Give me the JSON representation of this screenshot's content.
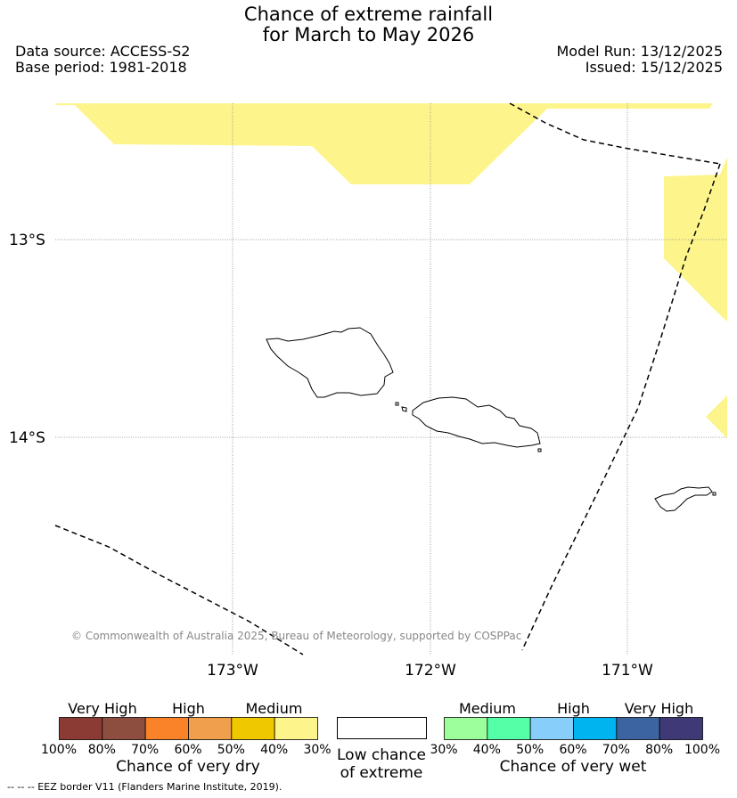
{
  "header": {
    "title_line1": "Chance of extreme rainfall",
    "title_line2": "for March to May 2026",
    "data_source": "Data source: ACCESS-S2",
    "base_period": "Base period: 1981-2018",
    "model_run": "Model Run: 13/12/2025",
    "issued": "Issued: 15/12/2025"
  },
  "map": {
    "lon_labels": [
      "173°W",
      "172°W",
      "171°W"
    ],
    "lat_labels": [
      "13°S",
      "14°S"
    ],
    "copyright": "© Commonwealth of Australia 2025, Bureau of Meteorology, supported by COSPPac",
    "colors": {
      "medium_dry": "#fdf58c",
      "land_outline": "#000000",
      "grid": "#888888"
    }
  },
  "legend": {
    "dry": {
      "groups": [
        "Very High",
        "High",
        "Medium"
      ],
      "ticks": [
        "100%",
        "80%",
        "70%",
        "60%",
        "50%",
        "40%",
        "30%"
      ],
      "caption": "Chance of very dry",
      "colors": [
        "#8b3a34",
        "#8e4e3f",
        "#fa8228",
        "#f0a04c",
        "#f0c800",
        "#fdf58c"
      ]
    },
    "low": {
      "caption_line1": "Low chance",
      "caption_line2": "of extreme"
    },
    "wet": {
      "groups": [
        "Medium",
        "High",
        "Very High"
      ],
      "ticks": [
        "30%",
        "40%",
        "50%",
        "60%",
        "70%",
        "80%",
        "100%"
      ],
      "caption": "Chance of very wet",
      "colors": [
        "#9cff9c",
        "#55ffa8",
        "#87cefa",
        "#00b4f0",
        "#3c64a0",
        "#3f3a77"
      ]
    }
  },
  "footnote": "-- -- -- EEZ border V11 (Flanders Marine Institute, 2019)."
}
